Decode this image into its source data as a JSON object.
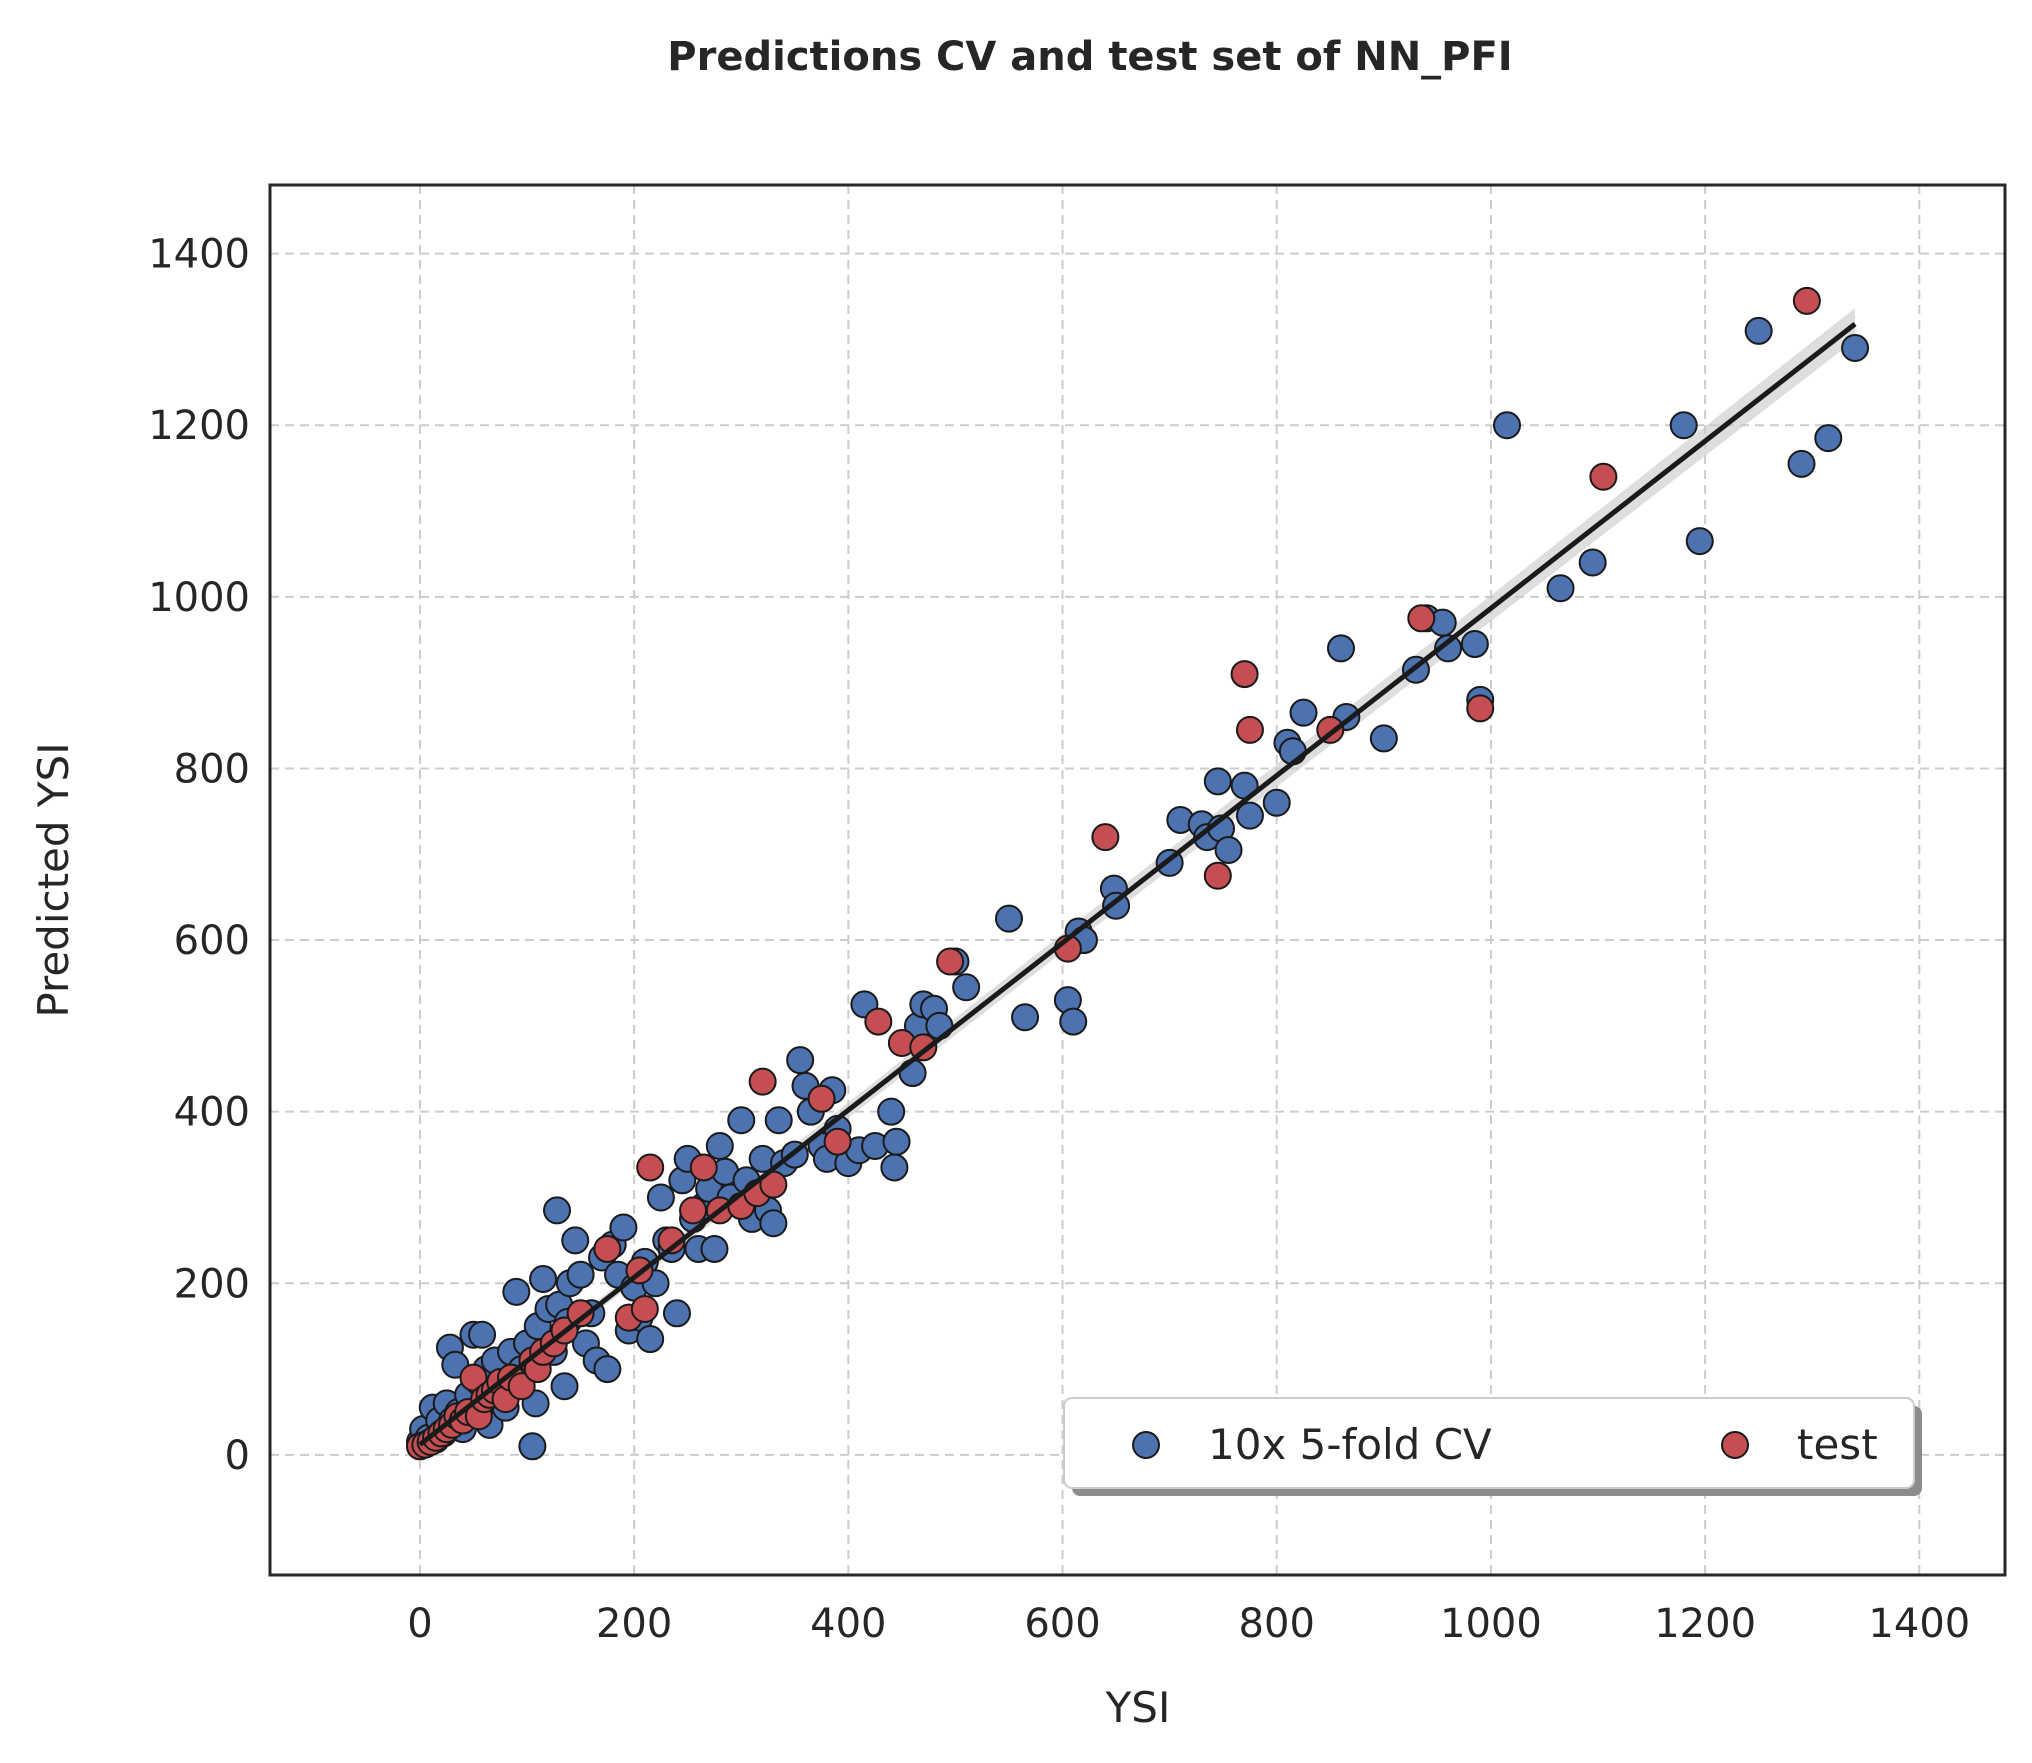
{
  "chart_data": {
    "type": "scatter",
    "title": "Predictions CV and test set of NN_PFI",
    "xlabel": "YSI",
    "ylabel": "Predicted YSI",
    "xlim": [
      -140,
      1480
    ],
    "ylim": [
      -140,
      1480
    ],
    "xticks": [
      "0",
      "200",
      "400",
      "600",
      "800",
      "1000",
      "1200",
      "1400"
    ],
    "yticks": [
      "0",
      "200",
      "400",
      "600",
      "800",
      "1000",
      "1200",
      "1400"
    ],
    "grid": true,
    "legend": {
      "placement": "lower-right",
      "columns": 2
    },
    "regression_line": {
      "x": [
        0,
        1340
      ],
      "y": [
        12,
        1318
      ],
      "color": "#1a1a1a",
      "confidence_band": true
    },
    "series": [
      {
        "name": "10x 5-fold CV",
        "color": "#4c72b0",
        "points": [
          [
            0,
            15
          ],
          [
            3,
            30
          ],
          [
            8,
            20
          ],
          [
            12,
            55
          ],
          [
            15,
            18
          ],
          [
            18,
            40
          ],
          [
            22,
            25
          ],
          [
            25,
            60
          ],
          [
            28,
            125
          ],
          [
            30,
            40
          ],
          [
            33,
            105
          ],
          [
            36,
            50
          ],
          [
            40,
            30
          ],
          [
            45,
            70
          ],
          [
            50,
            140
          ],
          [
            55,
            85
          ],
          [
            58,
            140
          ],
          [
            62,
            100
          ],
          [
            65,
            35
          ],
          [
            70,
            110
          ],
          [
            75,
            75
          ],
          [
            80,
            55
          ],
          [
            85,
            120
          ],
          [
            90,
            190
          ],
          [
            95,
            100
          ],
          [
            100,
            130
          ],
          [
            105,
            10
          ],
          [
            108,
            60
          ],
          [
            110,
            150
          ],
          [
            115,
            205
          ],
          [
            120,
            170
          ],
          [
            125,
            120
          ],
          [
            128,
            285
          ],
          [
            130,
            175
          ],
          [
            135,
            80
          ],
          [
            138,
            155
          ],
          [
            140,
            200
          ],
          [
            145,
            250
          ],
          [
            150,
            210
          ],
          [
            155,
            130
          ],
          [
            160,
            165
          ],
          [
            165,
            110
          ],
          [
            170,
            230
          ],
          [
            175,
            100
          ],
          [
            180,
            245
          ],
          [
            185,
            210
          ],
          [
            190,
            265
          ],
          [
            195,
            145
          ],
          [
            200,
            195
          ],
          [
            205,
            160
          ],
          [
            210,
            225
          ],
          [
            215,
            135
          ],
          [
            220,
            200
          ],
          [
            225,
            300
          ],
          [
            230,
            250
          ],
          [
            235,
            240
          ],
          [
            240,
            165
          ],
          [
            245,
            320
          ],
          [
            250,
            345
          ],
          [
            255,
            275
          ],
          [
            260,
            240
          ],
          [
            265,
            290
          ],
          [
            270,
            310
          ],
          [
            275,
            240
          ],
          [
            280,
            360
          ],
          [
            285,
            330
          ],
          [
            290,
            300
          ],
          [
            300,
            390
          ],
          [
            305,
            320
          ],
          [
            310,
            275
          ],
          [
            320,
            345
          ],
          [
            325,
            285
          ],
          [
            330,
            270
          ],
          [
            335,
            390
          ],
          [
            340,
            340
          ],
          [
            350,
            350
          ],
          [
            355,
            460
          ],
          [
            360,
            430
          ],
          [
            365,
            400
          ],
          [
            375,
            360
          ],
          [
            380,
            345
          ],
          [
            385,
            425
          ],
          [
            390,
            380
          ],
          [
            400,
            340
          ],
          [
            410,
            355
          ],
          [
            415,
            525
          ],
          [
            425,
            360
          ],
          [
            440,
            400
          ],
          [
            443,
            335
          ],
          [
            445,
            365
          ],
          [
            460,
            445
          ],
          [
            465,
            500
          ],
          [
            470,
            525
          ],
          [
            480,
            520
          ],
          [
            485,
            500
          ],
          [
            500,
            575
          ],
          [
            510,
            545
          ],
          [
            550,
            625
          ],
          [
            565,
            510
          ],
          [
            605,
            530
          ],
          [
            610,
            505
          ],
          [
            615,
            610
          ],
          [
            620,
            600
          ],
          [
            648,
            660
          ],
          [
            650,
            640
          ],
          [
            700,
            690
          ],
          [
            710,
            740
          ],
          [
            730,
            735
          ],
          [
            735,
            720
          ],
          [
            745,
            785
          ],
          [
            748,
            730
          ],
          [
            755,
            705
          ],
          [
            770,
            780
          ],
          [
            775,
            745
          ],
          [
            800,
            760
          ],
          [
            810,
            830
          ],
          [
            815,
            820
          ],
          [
            825,
            865
          ],
          [
            860,
            940
          ],
          [
            865,
            860
          ],
          [
            900,
            835
          ],
          [
            930,
            915
          ],
          [
            940,
            975
          ],
          [
            955,
            970
          ],
          [
            960,
            940
          ],
          [
            985,
            945
          ],
          [
            990,
            880
          ],
          [
            1015,
            1200
          ],
          [
            1065,
            1010
          ],
          [
            1095,
            1040
          ],
          [
            1180,
            1200
          ],
          [
            1195,
            1065
          ],
          [
            1250,
            1310
          ],
          [
            1290,
            1155
          ],
          [
            1315,
            1185
          ],
          [
            1340,
            1290
          ]
        ]
      },
      {
        "name": "test",
        "color": "#c44e52",
        "points": [
          [
            0,
            10
          ],
          [
            5,
            12
          ],
          [
            10,
            15
          ],
          [
            15,
            20
          ],
          [
            20,
            25
          ],
          [
            25,
            30
          ],
          [
            30,
            35
          ],
          [
            35,
            45
          ],
          [
            40,
            40
          ],
          [
            45,
            50
          ],
          [
            50,
            90
          ],
          [
            55,
            45
          ],
          [
            60,
            65
          ],
          [
            65,
            70
          ],
          [
            70,
            75
          ],
          [
            75,
            85
          ],
          [
            80,
            65
          ],
          [
            85,
            90
          ],
          [
            95,
            80
          ],
          [
            105,
            110
          ],
          [
            110,
            100
          ],
          [
            115,
            120
          ],
          [
            125,
            130
          ],
          [
            135,
            145
          ],
          [
            150,
            165
          ],
          [
            175,
            240
          ],
          [
            195,
            160
          ],
          [
            205,
            215
          ],
          [
            210,
            170
          ],
          [
            215,
            335
          ],
          [
            235,
            250
          ],
          [
            255,
            285
          ],
          [
            265,
            335
          ],
          [
            280,
            285
          ],
          [
            300,
            290
          ],
          [
            315,
            305
          ],
          [
            320,
            435
          ],
          [
            330,
            315
          ],
          [
            375,
            415
          ],
          [
            390,
            365
          ],
          [
            428,
            505
          ],
          [
            450,
            480
          ],
          [
            470,
            475
          ],
          [
            495,
            575
          ],
          [
            605,
            590
          ],
          [
            640,
            720
          ],
          [
            745,
            675
          ],
          [
            770,
            910
          ],
          [
            775,
            845
          ],
          [
            850,
            845
          ],
          [
            935,
            975
          ],
          [
            990,
            870
          ],
          [
            1105,
            1140
          ],
          [
            1295,
            1345
          ]
        ]
      }
    ]
  }
}
